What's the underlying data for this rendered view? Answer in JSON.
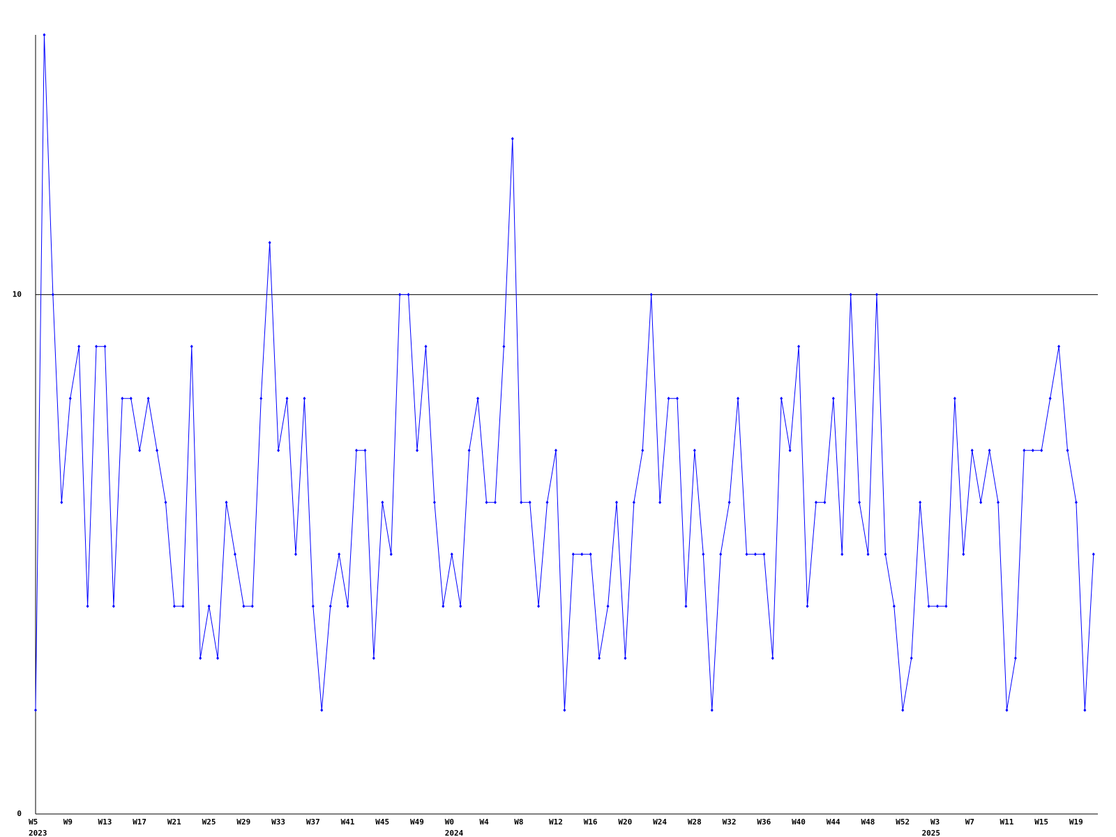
{
  "chart_data": {
    "type": "line",
    "categories": [
      "W5",
      null,
      null,
      null,
      "W9",
      null,
      null,
      null,
      "W13",
      null,
      null,
      null,
      "W17",
      null,
      null,
      null,
      "W21",
      null,
      null,
      null,
      "W25",
      null,
      null,
      null,
      "W29",
      null,
      null,
      null,
      "W33",
      null,
      null,
      null,
      "W37",
      null,
      null,
      null,
      "W41",
      null,
      null,
      null,
      "W45",
      null,
      null,
      null,
      "W49",
      null,
      null,
      null,
      "W0",
      null,
      null,
      null,
      "W4",
      null,
      null,
      null,
      "W8",
      null,
      null,
      null,
      "W12",
      null,
      null,
      null,
      "W16",
      null,
      null,
      null,
      "W20",
      null,
      null,
      null,
      "W24",
      null,
      null,
      null,
      "W28",
      null,
      null,
      null,
      "W32",
      null,
      null,
      null,
      "W36",
      null,
      null,
      null,
      "W40",
      null,
      null,
      null,
      "W44",
      null,
      null,
      null,
      "W48",
      null,
      null,
      null,
      "W52",
      null,
      null,
      null,
      "W3",
      null,
      null,
      null,
      "W7",
      null,
      null,
      null,
      "W11",
      null,
      null,
      null,
      "W15",
      null,
      null,
      null,
      "W19",
      null,
      null
    ],
    "year_labels": [
      "2023",
      null,
      null,
      null,
      null,
      null,
      null,
      null,
      null,
      null,
      null,
      null,
      null,
      null,
      null,
      null,
      null,
      null,
      null,
      null,
      null,
      null,
      null,
      null,
      null,
      null,
      null,
      null,
      null,
      null,
      null,
      null,
      null,
      null,
      null,
      null,
      null,
      null,
      null,
      null,
      null,
      null,
      null,
      null,
      null,
      null,
      null,
      null,
      "2024",
      null,
      null,
      null,
      null,
      null,
      null,
      null,
      null,
      null,
      null,
      null,
      null,
      null,
      null,
      null,
      null,
      null,
      null,
      null,
      null,
      null,
      null,
      null,
      null,
      null,
      null,
      null,
      null,
      null,
      null,
      null,
      null,
      null,
      null,
      null,
      null,
      null,
      null,
      null,
      null,
      null,
      null,
      null,
      null,
      null,
      null,
      null,
      null,
      null,
      null,
      null,
      null,
      null,
      null,
      "2025",
      null,
      null,
      null,
      null,
      null,
      null,
      null,
      null,
      null,
      null,
      null,
      null,
      null,
      null,
      null,
      null,
      null,
      null,
      null,
      null,
      null
    ],
    "values": [
      2,
      15,
      10,
      6,
      8,
      9,
      4,
      9,
      9,
      4,
      8,
      8,
      7,
      8,
      7,
      6,
      4,
      4,
      9,
      3,
      4,
      3,
      6,
      5,
      4,
      4,
      8,
      11,
      7,
      8,
      5,
      8,
      4,
      2,
      4,
      5,
      4,
      7,
      7,
      3,
      6,
      5,
      10,
      10,
      7,
      9,
      6,
      4,
      5,
      4,
      7,
      8,
      6,
      6,
      9,
      13,
      6,
      6,
      4,
      6,
      7,
      2,
      5,
      5,
      5,
      3,
      4,
      6,
      3,
      6,
      7,
      10,
      6,
      8,
      8,
      4,
      7,
      5,
      2,
      5,
      6,
      8,
      5,
      5,
      5,
      3,
      8,
      7,
      9,
      4,
      6,
      6,
      8,
      5,
      10,
      6,
      5,
      10,
      5,
      4,
      2,
      3,
      6,
      4,
      4,
      4,
      8,
      5,
      7,
      6,
      7,
      6,
      2,
      3,
      7,
      7,
      7,
      8,
      9,
      7,
      6,
      2,
      5
    ],
    "color": "#0000ff",
    "ylim": [
      0,
      15
    ],
    "yticks": [
      0,
      10
    ],
    "grid": true
  }
}
